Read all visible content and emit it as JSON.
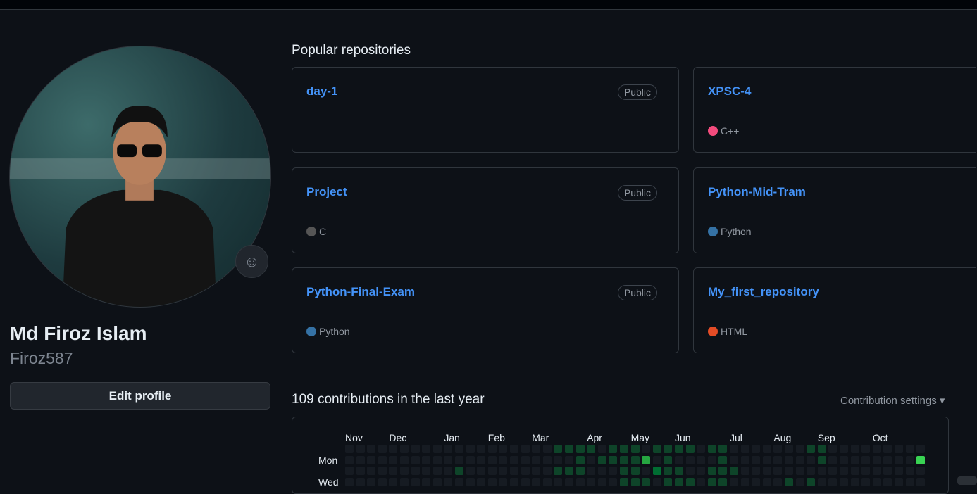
{
  "profile": {
    "name": "Md Firoz Islam",
    "login": "Firoz587",
    "edit_label": "Edit profile",
    "emoji_icon": "smiley-icon"
  },
  "popular": {
    "title": "Popular repositories",
    "repos": [
      {
        "name": "day-1",
        "badge": "Public",
        "lang": "",
        "color": ""
      },
      {
        "name": "XPSC-4",
        "badge": "",
        "lang": "C++",
        "color": "#f34b7d"
      },
      {
        "name": "Project",
        "badge": "Public",
        "lang": "C",
        "color": "#555555"
      },
      {
        "name": "Python-Mid-Tram",
        "badge": "",
        "lang": "Python",
        "color": "#3572A5"
      },
      {
        "name": "Python-Final-Exam",
        "badge": "Public",
        "lang": "Python",
        "color": "#3572A5"
      },
      {
        "name": "My_first_repository",
        "badge": "",
        "lang": "HTML",
        "color": "#e34c26"
      }
    ]
  },
  "contributions": {
    "title": "109 contributions in the last year",
    "settings_label": "Contribution settings ▾",
    "months": [
      "Nov",
      "Dec",
      "Jan",
      "Feb",
      "Mar",
      "Apr",
      "May",
      "Jun",
      "Jul",
      "Aug",
      "Sep",
      "Oct"
    ],
    "days": [
      "Mon",
      "Wed"
    ],
    "level_colors": [
      "#161b22",
      "#0e4429",
      "#006d32",
      "#26a641",
      "#39d353"
    ],
    "rows": [
      [
        [
          19,
          1
        ],
        [
          20,
          1
        ],
        [
          21,
          1
        ],
        [
          22,
          1
        ],
        [
          24,
          1
        ],
        [
          25,
          1
        ],
        [
          26,
          1
        ],
        [
          28,
          1
        ],
        [
          29,
          1
        ],
        [
          30,
          1
        ],
        [
          31,
          1
        ],
        [
          33,
          1
        ],
        [
          34,
          1
        ],
        [
          42,
          1
        ],
        [
          43,
          1
        ]
      ],
      [
        [
          21,
          1
        ],
        [
          23,
          1
        ],
        [
          24,
          1
        ],
        [
          25,
          1
        ],
        [
          26,
          1
        ],
        [
          27,
          3
        ],
        [
          29,
          1
        ],
        [
          34,
          1
        ],
        [
          43,
          1
        ],
        [
          52,
          4
        ]
      ],
      [
        [
          10,
          1
        ],
        [
          19,
          1
        ],
        [
          20,
          1
        ],
        [
          21,
          1
        ],
        [
          25,
          1
        ],
        [
          26,
          1
        ],
        [
          28,
          2
        ],
        [
          29,
          1
        ],
        [
          30,
          1
        ],
        [
          33,
          1
        ],
        [
          34,
          1
        ],
        [
          35,
          1
        ]
      ],
      [
        [
          25,
          1
        ],
        [
          26,
          1
        ],
        [
          27,
          1
        ],
        [
          29,
          1
        ],
        [
          30,
          1
        ],
        [
          31,
          1
        ],
        [
          33,
          1
        ],
        [
          34,
          1
        ],
        [
          40,
          1
        ],
        [
          42,
          1
        ]
      ]
    ]
  }
}
